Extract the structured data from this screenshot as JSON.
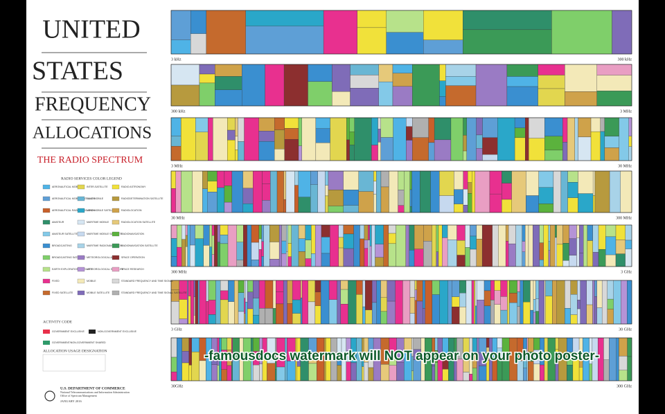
{
  "title": {
    "lines": [
      "UNITED",
      "STATES",
      "FREQUENCY",
      "ALLOCATIONS"
    ],
    "subtitle": "THE RADIO SPECTRUM"
  },
  "legend": {
    "heading": "RADIO SERVICES COLOR LEGEND",
    "items": [
      {
        "label": "AERONAUTICAL MOBILE",
        "color": "#4fb3e6"
      },
      {
        "label": "AERONAUTICAL MOBILE SATELLITE",
        "color": "#5e9fd6"
      },
      {
        "label": "AERONAUTICAL RADIONAVIGATION",
        "color": "#c8602a"
      },
      {
        "label": "AMATEUR",
        "color": "#2f8f6a"
      },
      {
        "label": "AMATEUR SATELLITE",
        "color": "#83c9e8"
      },
      {
        "label": "BROADCASTING",
        "color": "#3a8fd0"
      },
      {
        "label": "BROADCASTING SATELLITE",
        "color": "#7fcf6a"
      },
      {
        "label": "EARTH EXPLORATION SATELLITE",
        "color": "#b7e28a"
      },
      {
        "label": "FIXED",
        "color": "#e8308f"
      },
      {
        "label": "FIXED SATELLITE",
        "color": "#c56a2d"
      },
      {
        "label": "INTER-SATELLITE",
        "color": "#e2d64f"
      },
      {
        "label": "LAND MOBILE",
        "color": "#69b6d4"
      },
      {
        "label": "LAND MOBILE SATELLITE",
        "color": "#2aa7c9"
      },
      {
        "label": "MARITIME MOBILE",
        "color": "#d6e6f2"
      },
      {
        "label": "MARITIME MOBILE SATELLITE",
        "color": "#c6d9ef"
      },
      {
        "label": "MARITIME RADIONAVIGATION",
        "color": "#a8d3e8"
      },
      {
        "label": "METEOROLOGICAL AIDS",
        "color": "#9a7bc4"
      },
      {
        "label": "METEOROLOGICAL SATELLITE",
        "color": "#b593d6"
      },
      {
        "label": "MOBILE",
        "color": "#f3e9b8"
      },
      {
        "label": "MOBILE SATELLITE",
        "color": "#7f6cb8"
      },
      {
        "label": "RADIO ASTRONOMY",
        "color": "#f1e13a"
      },
      {
        "label": "RADIODETERMINATION SATELLITE",
        "color": "#b79a3e"
      },
      {
        "label": "RADIOLOCATION",
        "color": "#cfa24a"
      },
      {
        "label": "RADIOLOCATION SATELLITE",
        "color": "#e6c97a"
      },
      {
        "label": "RADIONAVIGATION",
        "color": "#5bb23d"
      },
      {
        "label": "RADIONAVIGATION SATELLITE",
        "color": "#3b9a57"
      },
      {
        "label": "SPACE OPERATION",
        "color": "#8c2f2f"
      },
      {
        "label": "SPACE RESEARCH",
        "color": "#e99ec3"
      },
      {
        "label": "STANDARD FREQUENCY AND TIME SIGNAL",
        "color": "#d8d8d8"
      },
      {
        "label": "STANDARD FREQUENCY AND TIME SIGNAL SATELLITE",
        "color": "#b0b0b0"
      }
    ]
  },
  "activity_code": {
    "heading": "ACTIVITY CODE",
    "items": [
      {
        "label": "GOVERNMENT EXCLUSIVE",
        "color": "#e8304a"
      },
      {
        "label": "NON-GOVERNMENT EXCLUSIVE",
        "color": "#222222"
      },
      {
        "label": "GOVERNMENT/NON-GOVERNMENT SHARED",
        "color": "#2f9a6a"
      }
    ]
  },
  "allocation_usage": {
    "heading": "ALLOCATION USAGE DESIGNATION"
  },
  "publisher": {
    "department": "U.S. DEPARTMENT OF COMMERCE",
    "agency": "National Telecommunications and Information Administration",
    "office": "Office of Spectrum Management",
    "date": "JANUARY 2016"
  },
  "bands": [
    {
      "start": "3 kHz",
      "end": "300 kHz"
    },
    {
      "start": "300 kHz",
      "end": "3 MHz"
    },
    {
      "start": "3 MHz",
      "end": "30 MHz"
    },
    {
      "start": "30 MHz",
      "end": "300 MHz"
    },
    {
      "start": "300 MHz",
      "end": "3 GHz"
    },
    {
      "start": "3 GHz",
      "end": "30 GHz"
    },
    {
      "start": "30GHz",
      "end": "300 GHz"
    }
  ],
  "watermark": "-famousdocs watermark will NOT appear on your photo poster-"
}
